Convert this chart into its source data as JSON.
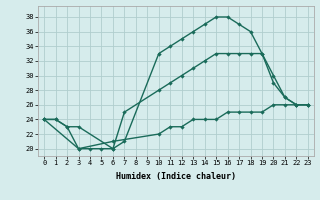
{
  "xlabel": "Humidex (Indice chaleur)",
  "bg_color": "#d6ecec",
  "grid_color": "#b0cece",
  "line_color": "#1a6b5a",
  "xlim": [
    -0.5,
    23.5
  ],
  "ylim": [
    19.0,
    39.5
  ],
  "yticks": [
    20,
    22,
    24,
    26,
    28,
    30,
    32,
    34,
    36,
    38
  ],
  "xticks": [
    0,
    1,
    2,
    3,
    4,
    5,
    6,
    7,
    8,
    9,
    10,
    11,
    12,
    13,
    14,
    15,
    16,
    17,
    18,
    19,
    20,
    21,
    22,
    23
  ],
  "line1_x": [
    0,
    1,
    2,
    3,
    4,
    5,
    6,
    7,
    10,
    11,
    12,
    13,
    14,
    15,
    16,
    17,
    18,
    19,
    20,
    21,
    22,
    23
  ],
  "line1_y": [
    24,
    24,
    23,
    20,
    20,
    20,
    20,
    21,
    33,
    34,
    35,
    36,
    37,
    38,
    38,
    37,
    36,
    33,
    29,
    27,
    26,
    26
  ],
  "line2_x": [
    0,
    1,
    2,
    3,
    6,
    7,
    10,
    11,
    12,
    13,
    14,
    15,
    16,
    17,
    18,
    19,
    20,
    21,
    22,
    23
  ],
  "line2_y": [
    24,
    24,
    23,
    23,
    20,
    25,
    28,
    29,
    30,
    31,
    32,
    33,
    33,
    33,
    33,
    33,
    30,
    27,
    26,
    26
  ],
  "line3_x": [
    0,
    3,
    6,
    10,
    11,
    12,
    13,
    14,
    15,
    16,
    17,
    18,
    19,
    20,
    21,
    22,
    23
  ],
  "line3_y": [
    24,
    20,
    21,
    22,
    23,
    23,
    24,
    24,
    24,
    25,
    25,
    25,
    25,
    26,
    26,
    26,
    26
  ],
  "tick_fontsize": 5.0,
  "xlabel_fontsize": 6.0,
  "marker_size": 2.2,
  "line_width": 1.0
}
